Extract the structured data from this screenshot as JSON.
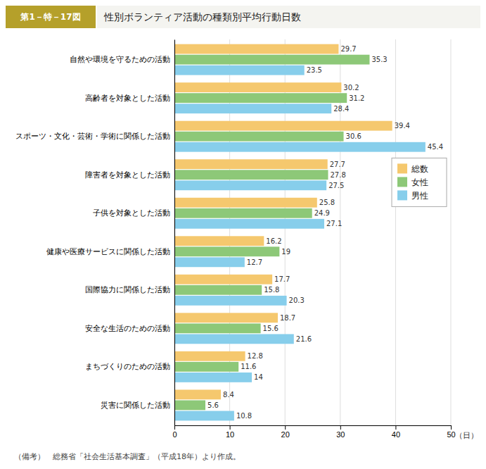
{
  "chart_data": {
    "type": "bar",
    "orientation": "horizontal",
    "title": "性別ボランティア活動の種類別平均行動日数",
    "annotations": [
      "第1－特－17図",
      "（備考）　総務省「社会生活基本調査」（平成18年）より作成。"
    ],
    "xlabel": "（日）",
    "categories": [
      "自然や環境を守るための活動",
      "高齢者を対象とした活動",
      "スポーツ・文化・芸術・学術に関係した活動",
      "障害者を対象とした活動",
      "子供を対象とした活動",
      "健康や医療サービスに関係した活動",
      "国際協力に関係した活動",
      "安全な生活のための活動",
      "まちづくりのための活動",
      "災害に関係した活動"
    ],
    "series": [
      {
        "name": "総数",
        "color": "#F5C86E",
        "values": [
          29.7,
          30.2,
          39.4,
          27.7,
          25.8,
          16.2,
          17.7,
          18.7,
          12.8,
          8.4
        ]
      },
      {
        "name": "女性",
        "color": "#8DC878",
        "values": [
          35.3,
          31.2,
          30.6,
          27.8,
          24.9,
          19.0,
          15.8,
          15.6,
          11.6,
          5.6
        ]
      },
      {
        "name": "男性",
        "color": "#87CEEB",
        "values": [
          23.5,
          28.4,
          45.4,
          27.5,
          27.1,
          12.7,
          20.3,
          21.6,
          14.0,
          10.8
        ]
      }
    ],
    "xlim": [
      0,
      50
    ],
    "xticks": [
      0,
      10,
      20,
      30,
      40,
      50
    ],
    "grid": true,
    "legend": "upper right",
    "data_labels": true
  }
}
